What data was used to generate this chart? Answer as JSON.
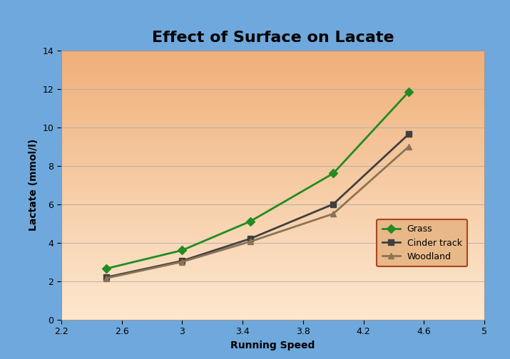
{
  "title": "Effect of Surface on Lacate",
  "xlabel": "Running Speed",
  "ylabel": "Lactate (mmol/l)",
  "xlim": [
    2.2,
    5.0
  ],
  "ylim": [
    0,
    14
  ],
  "xticks": [
    2.2,
    2.6,
    3.0,
    3.4,
    3.8,
    4.2,
    4.6,
    5.0
  ],
  "yticks": [
    0,
    2,
    4,
    6,
    8,
    10,
    12,
    14
  ],
  "series": [
    {
      "name": "Grass",
      "x": [
        2.5,
        3.0,
        3.45,
        4.0,
        4.5
      ],
      "y": [
        2.65,
        3.6,
        5.1,
        7.6,
        11.85
      ],
      "color": "#228B22",
      "marker": "D",
      "marker_color": "#228B22",
      "linewidth": 2.0
    },
    {
      "name": "Cinder track",
      "x": [
        2.5,
        3.0,
        3.45,
        4.0,
        4.5
      ],
      "y": [
        2.2,
        3.05,
        4.2,
        6.0,
        9.65
      ],
      "color": "#404040",
      "marker": "s",
      "marker_color": "#404040",
      "linewidth": 2.0
    },
    {
      "name": "Woodland",
      "x": [
        2.5,
        3.0,
        3.45,
        4.0,
        4.5
      ],
      "y": [
        2.15,
        3.0,
        4.05,
        5.5,
        9.0
      ],
      "color": "#8B7355",
      "marker": "^",
      "marker_color": "#8B7355",
      "linewidth": 2.0
    }
  ],
  "bg_outer": "#6fa8dc",
  "bg_plot_top": "#f0b07a",
  "bg_plot_bottom": "#fde8d0",
  "grid_color": "#b0b0b0",
  "title_fontsize": 16,
  "axis_label_fontsize": 10,
  "tick_fontsize": 9,
  "legend_bg": "#e8b888",
  "legend_border": "#aa4422"
}
